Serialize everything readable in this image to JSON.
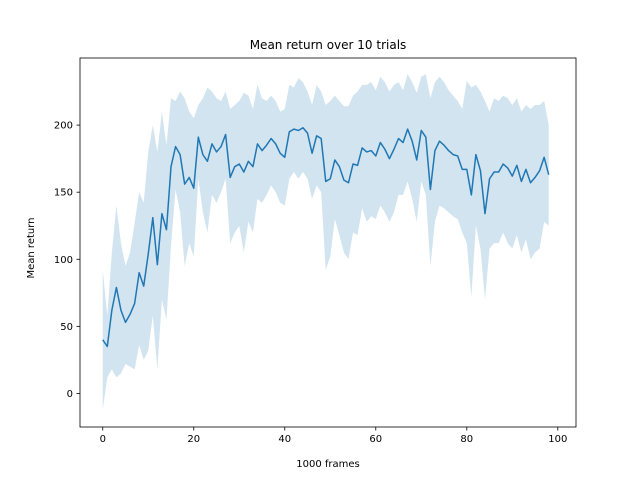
{
  "chart_data": {
    "type": "line",
    "title": "Mean return over 10 trials",
    "xlabel": "1000 frames",
    "ylabel": "Mean return",
    "xlim": [
      -5,
      104
    ],
    "ylim": [
      -25,
      250
    ],
    "xticks": [
      0,
      20,
      40,
      60,
      80,
      100
    ],
    "yticks": [
      0,
      50,
      100,
      150,
      200
    ],
    "grid": false,
    "series": [
      {
        "color": "#1f77b4",
        "band_color": "#1f77b4",
        "band_opacity": 0.2,
        "x": [
          0,
          1,
          2,
          3,
          4,
          5,
          6,
          7,
          8,
          9,
          10,
          11,
          12,
          13,
          14,
          15,
          16,
          17,
          18,
          19,
          20,
          21,
          22,
          23,
          24,
          25,
          26,
          27,
          28,
          29,
          30,
          31,
          32,
          33,
          34,
          35,
          36,
          37,
          38,
          39,
          40,
          41,
          42,
          43,
          44,
          45,
          46,
          47,
          48,
          49,
          50,
          51,
          52,
          53,
          54,
          55,
          56,
          57,
          58,
          59,
          60,
          61,
          62,
          63,
          64,
          65,
          66,
          67,
          68,
          69,
          70,
          71,
          72,
          73,
          74,
          75,
          76,
          77,
          78,
          79,
          80,
          81,
          82,
          83,
          84,
          85,
          86,
          87,
          88,
          89,
          90,
          91,
          92,
          93,
          94,
          95,
          96,
          97,
          98,
          99
        ],
        "mean": [
          40,
          35,
          62,
          79,
          62,
          53,
          59,
          67,
          90,
          80,
          104,
          131,
          96,
          134,
          122,
          169,
          184,
          178,
          156,
          161,
          153,
          191,
          178,
          173,
          186,
          180,
          184,
          193,
          161,
          169,
          171,
          165,
          173,
          169,
          186,
          181,
          185,
          190,
          186,
          179,
          176,
          195,
          197,
          196,
          198,
          194,
          179,
          192,
          190,
          158,
          160,
          174,
          169,
          159,
          157,
          171,
          170,
          183,
          180,
          181,
          177,
          187,
          182,
          175,
          182,
          190,
          187,
          197,
          188,
          174,
          196,
          191,
          152,
          181,
          188,
          185,
          181,
          178,
          177,
          167,
          167,
          148,
          178,
          166,
          134,
          160,
          165,
          165,
          171,
          168,
          162,
          170,
          158,
          167,
          157,
          161,
          166,
          176,
          163,
          null
        ],
        "upper": [
          92,
          58,
          105,
          140,
          112,
          95,
          105,
          127,
          150,
          142,
          180,
          200,
          180,
          210,
          185,
          220,
          218,
          225,
          220,
          210,
          205,
          215,
          220,
          228,
          225,
          220,
          218,
          225,
          212,
          215,
          218,
          224,
          222,
          212,
          230,
          220,
          218,
          222,
          218,
          210,
          212,
          230,
          228,
          235,
          232,
          225,
          215,
          230,
          225,
          215,
          218,
          222,
          218,
          214,
          214,
          222,
          225,
          230,
          230,
          232,
          226,
          236,
          232,
          225,
          230,
          232,
          226,
          238,
          232,
          224,
          236,
          238,
          220,
          232,
          236,
          232,
          226,
          222,
          218,
          212,
          233,
          228,
          230,
          225,
          218,
          210,
          220,
          218,
          222,
          220,
          215,
          220,
          210,
          215,
          212,
          215,
          215,
          218,
          200,
          198
        ],
        "lower": [
          -12,
          12,
          18,
          12,
          15,
          22,
          20,
          18,
          36,
          25,
          32,
          58,
          18,
          70,
          55,
          110,
          152,
          135,
          95,
          112,
          102,
          160,
          135,
          120,
          148,
          142,
          150,
          160,
          112,
          120,
          125,
          105,
          128,
          120,
          145,
          142,
          148,
          155,
          150,
          142,
          140,
          160,
          165,
          160,
          165,
          160,
          145,
          155,
          150,
          92,
          102,
          130,
          118,
          105,
          100,
          120,
          118,
          138,
          128,
          132,
          130,
          140,
          135,
          128,
          135,
          148,
          148,
          158,
          145,
          128,
          158,
          148,
          95,
          128,
          140,
          138,
          135,
          132,
          130,
          120,
          112,
          72,
          125,
          108,
          70,
          108,
          112,
          112,
          120,
          112,
          108,
          118,
          105,
          115,
          100,
          105,
          108,
          128,
          125,
          null
        ]
      }
    ]
  }
}
